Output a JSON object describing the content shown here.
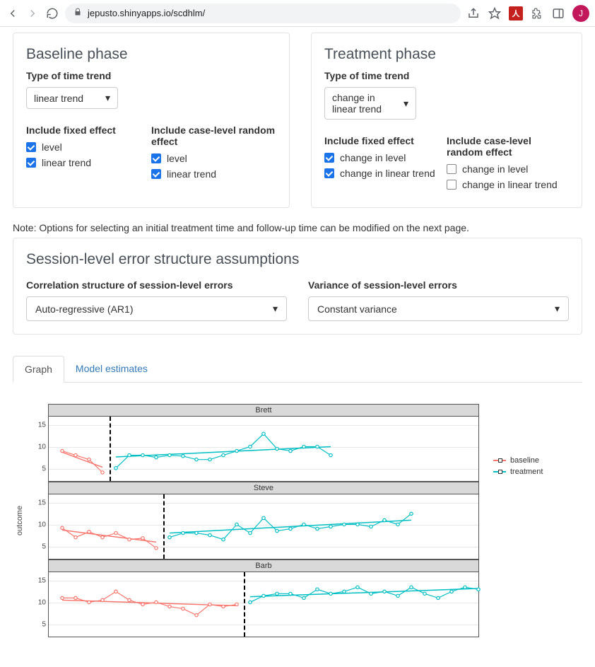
{
  "browser": {
    "url": "jepusto.shinyapps.io/scdhlm/",
    "avatar_initial": "J"
  },
  "baseline": {
    "title": "Baseline phase",
    "trend_label": "Type of time trend",
    "trend_value": "linear trend",
    "fixed_label": "Include fixed effect",
    "random_label": "Include case-level random effect",
    "fixed_opts": [
      {
        "label": "level",
        "checked": true
      },
      {
        "label": "linear trend",
        "checked": true
      }
    ],
    "random_opts": [
      {
        "label": "level",
        "checked": true
      },
      {
        "label": "linear trend",
        "checked": true
      }
    ]
  },
  "treatment": {
    "title": "Treatment phase",
    "trend_label": "Type of time trend",
    "trend_value": "change in linear trend",
    "fixed_label": "Include fixed effect",
    "random_label": "Include case-level random effect",
    "fixed_opts": [
      {
        "label": "change in level",
        "checked": true
      },
      {
        "label": "change in linear trend",
        "checked": true
      }
    ],
    "random_opts": [
      {
        "label": "change in level",
        "checked": false
      },
      {
        "label": "change in linear trend",
        "checked": false
      }
    ]
  },
  "note": "Note: Options for selecting an initial treatment time and follow-up time can be modified on the next page.",
  "session": {
    "title": "Session-level error structure assumptions",
    "corr_label": "Correlation structure of session-level errors",
    "corr_value": "Auto-regressive (AR1)",
    "var_label": "Variance of session-level errors",
    "var_value": "Constant variance"
  },
  "tabs": {
    "graph": "Graph",
    "estimates": "Model estimates"
  },
  "chart": {
    "y_label": "outcome",
    "y_ticks": [
      5,
      10,
      15
    ],
    "y_domain": [
      2,
      17
    ],
    "x_domain": [
      0,
      32
    ],
    "colors": {
      "baseline": "#f8766d",
      "treatment": "#00bfc4"
    },
    "legend": [
      {
        "label": "baseline",
        "color": "#f8766d"
      },
      {
        "label": "treatment",
        "color": "#00bfc4"
      }
    ],
    "facets": [
      {
        "name": "Brett",
        "vline_x": 4.5,
        "baseline_pts": [
          [
            1,
            9
          ],
          [
            2,
            8
          ],
          [
            3,
            7
          ],
          [
            4,
            4
          ]
        ],
        "baseline_fit": [
          [
            1,
            8.7
          ],
          [
            4,
            5.2
          ]
        ],
        "treatment_pts": [
          [
            5,
            5
          ],
          [
            6,
            8
          ],
          [
            7,
            8
          ],
          [
            8,
            7.5
          ],
          [
            9,
            8
          ],
          [
            10,
            7.8
          ],
          [
            11,
            7
          ],
          [
            12,
            7
          ],
          [
            13,
            8
          ],
          [
            14,
            9
          ],
          [
            15,
            10
          ],
          [
            16,
            13
          ],
          [
            17,
            9.5
          ],
          [
            18,
            9
          ],
          [
            19,
            10
          ],
          [
            20,
            10
          ],
          [
            21,
            8
          ]
        ],
        "treatment_fit": [
          [
            5,
            7.6
          ],
          [
            21,
            10.0
          ]
        ]
      },
      {
        "name": "Steve",
        "vline_x": 8.5,
        "baseline_pts": [
          [
            1,
            9.2
          ],
          [
            2,
            7
          ],
          [
            3,
            8.3
          ],
          [
            4,
            7
          ],
          [
            5,
            8
          ],
          [
            6,
            6.5
          ],
          [
            7,
            6.8
          ],
          [
            8,
            4.5
          ]
        ],
        "baseline_fit": [
          [
            1,
            8.7
          ],
          [
            8,
            5.9
          ]
        ],
        "treatment_pts": [
          [
            9,
            7
          ],
          [
            10,
            8
          ],
          [
            11,
            8
          ],
          [
            12,
            7.5
          ],
          [
            13,
            6.5
          ],
          [
            14,
            10
          ],
          [
            15,
            8
          ],
          [
            16,
            11.5
          ],
          [
            17,
            8.5
          ],
          [
            18,
            9
          ],
          [
            19,
            10
          ],
          [
            20,
            9
          ],
          [
            21,
            9.5
          ],
          [
            22,
            10
          ],
          [
            23,
            10
          ],
          [
            24,
            9.5
          ],
          [
            25,
            11
          ],
          [
            26,
            10
          ],
          [
            27,
            12.5
          ]
        ],
        "treatment_fit": [
          [
            9,
            8.0
          ],
          [
            27,
            11.0
          ]
        ]
      },
      {
        "name": "Barb",
        "vline_x": 14.5,
        "baseline_pts": [
          [
            1,
            11
          ],
          [
            2,
            11
          ],
          [
            3,
            10
          ],
          [
            4,
            10.5
          ],
          [
            5,
            12.5
          ],
          [
            6,
            10.5
          ],
          [
            7,
            9.5
          ],
          [
            8,
            10
          ],
          [
            9,
            9
          ],
          [
            10,
            8.5
          ],
          [
            11,
            7
          ],
          [
            12,
            9.5
          ],
          [
            13,
            9
          ],
          [
            14,
            9.5
          ]
        ],
        "baseline_fit": [
          [
            1,
            10.5
          ],
          [
            14,
            9.2
          ]
        ],
        "treatment_pts": [
          [
            15,
            10
          ],
          [
            16,
            11.5
          ],
          [
            17,
            12
          ],
          [
            18,
            12
          ],
          [
            19,
            11
          ],
          [
            20,
            13
          ],
          [
            21,
            12
          ],
          [
            22,
            12.5
          ],
          [
            23,
            13.5
          ],
          [
            24,
            12
          ],
          [
            25,
            12.5
          ],
          [
            26,
            11.5
          ],
          [
            27,
            13.5
          ],
          [
            28,
            12
          ],
          [
            29,
            11
          ],
          [
            30,
            12.5
          ],
          [
            31,
            13.5
          ],
          [
            32,
            13
          ]
        ],
        "treatment_fit": [
          [
            15,
            11.3
          ],
          [
            32,
            13.2
          ]
        ]
      }
    ]
  }
}
